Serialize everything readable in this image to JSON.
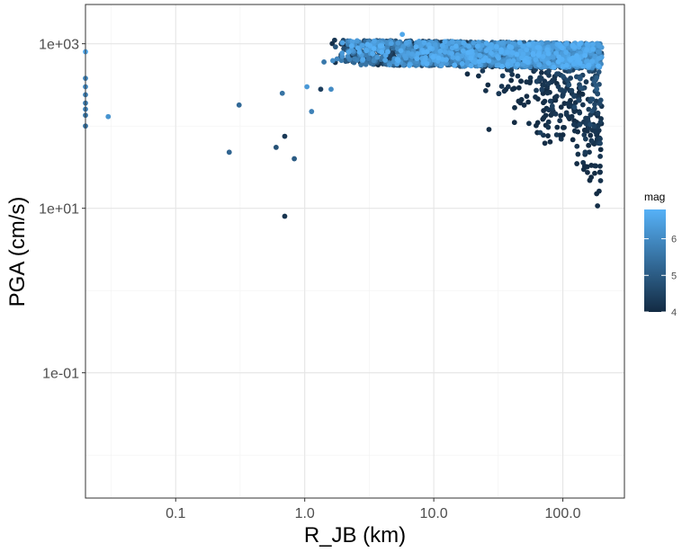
{
  "chart_data": {
    "type": "scatter",
    "xlabel": "R_JB (km)",
    "ylabel": "PGA (cm/s)",
    "x_scale": "log",
    "y_scale": "log",
    "xlim": [
      0.02,
      300
    ],
    "ylim": [
      0.003,
      3000
    ],
    "x_ticks": [
      {
        "value": 0.1,
        "label": "0.1"
      },
      {
        "value": 1,
        "label": "1.0"
      },
      {
        "value": 10,
        "label": "10.0"
      },
      {
        "value": 100,
        "label": "100.0"
      }
    ],
    "y_ticks": [
      {
        "value": 0.1,
        "label": "1e-01"
      },
      {
        "value": 10,
        "label": "1e+01"
      },
      {
        "value": 1000,
        "label": "1e+03"
      }
    ],
    "grid": true,
    "color_variable": "mag",
    "legend": {
      "title": "mag",
      "placement": "right",
      "min": 4,
      "max": 6.8,
      "ticks": [
        {
          "value": 4,
          "label": "4"
        },
        {
          "value": 5,
          "label": "5"
        },
        {
          "value": 6,
          "label": "6"
        }
      ],
      "low_color": "#132B43",
      "high_color": "#56B1F7"
    },
    "points": [
      {
        "x": 0.02,
        "y": 800,
        "mag": 6.6
      },
      {
        "x": 0.02,
        "y": 380,
        "mag": 5.9
      },
      {
        "x": 0.02,
        "y": 300,
        "mag": 6.0
      },
      {
        "x": 0.02,
        "y": 240,
        "mag": 5.8
      },
      {
        "x": 0.02,
        "y": 190,
        "mag": 5.7
      },
      {
        "x": 0.02,
        "y": 160,
        "mag": 5.8
      },
      {
        "x": 0.02,
        "y": 135,
        "mag": 5.6
      },
      {
        "x": 0.02,
        "y": 100,
        "mag": 5.5
      },
      {
        "x": 0.03,
        "y": 130,
        "mag": 6.2
      },
      {
        "x": 0.26,
        "y": 48,
        "mag": 5.2
      },
      {
        "x": 0.31,
        "y": 180,
        "mag": 5.3
      },
      {
        "x": 0.6,
        "y": 55,
        "mag": 4.8
      },
      {
        "x": 0.67,
        "y": 250,
        "mag": 5.5
      },
      {
        "x": 0.7,
        "y": 75,
        "mag": 4.3
      },
      {
        "x": 0.7,
        "y": 8,
        "mag": 4.2
      },
      {
        "x": 0.83,
        "y": 40,
        "mag": 5.0
      },
      {
        "x": 1.04,
        "y": 300,
        "mag": 6.3
      },
      {
        "x": 1.13,
        "y": 150,
        "mag": 5.8
      },
      {
        "x": 1.33,
        "y": 280,
        "mag": 4.4
      },
      {
        "x": 1.41,
        "y": 600,
        "mag": 5.6
      },
      {
        "x": 1.6,
        "y": 280,
        "mag": 6.0
      },
      {
        "x": 4.4,
        "y": 800,
        "mag": 6.7
      },
      {
        "x": 5.7,
        "y": 1300,
        "mag": 6.6
      },
      {
        "x": 6.8,
        "y": 750,
        "mag": 6.5
      },
      {
        "x": 8.0,
        "y": 780,
        "mag": 6.6
      },
      {
        "x": 9.3,
        "y": 850,
        "mag": 6.4
      }
    ],
    "cloud_generation": {
      "n": 3200,
      "x_range": [
        1.6,
        200
      ],
      "seed": 7
    }
  }
}
